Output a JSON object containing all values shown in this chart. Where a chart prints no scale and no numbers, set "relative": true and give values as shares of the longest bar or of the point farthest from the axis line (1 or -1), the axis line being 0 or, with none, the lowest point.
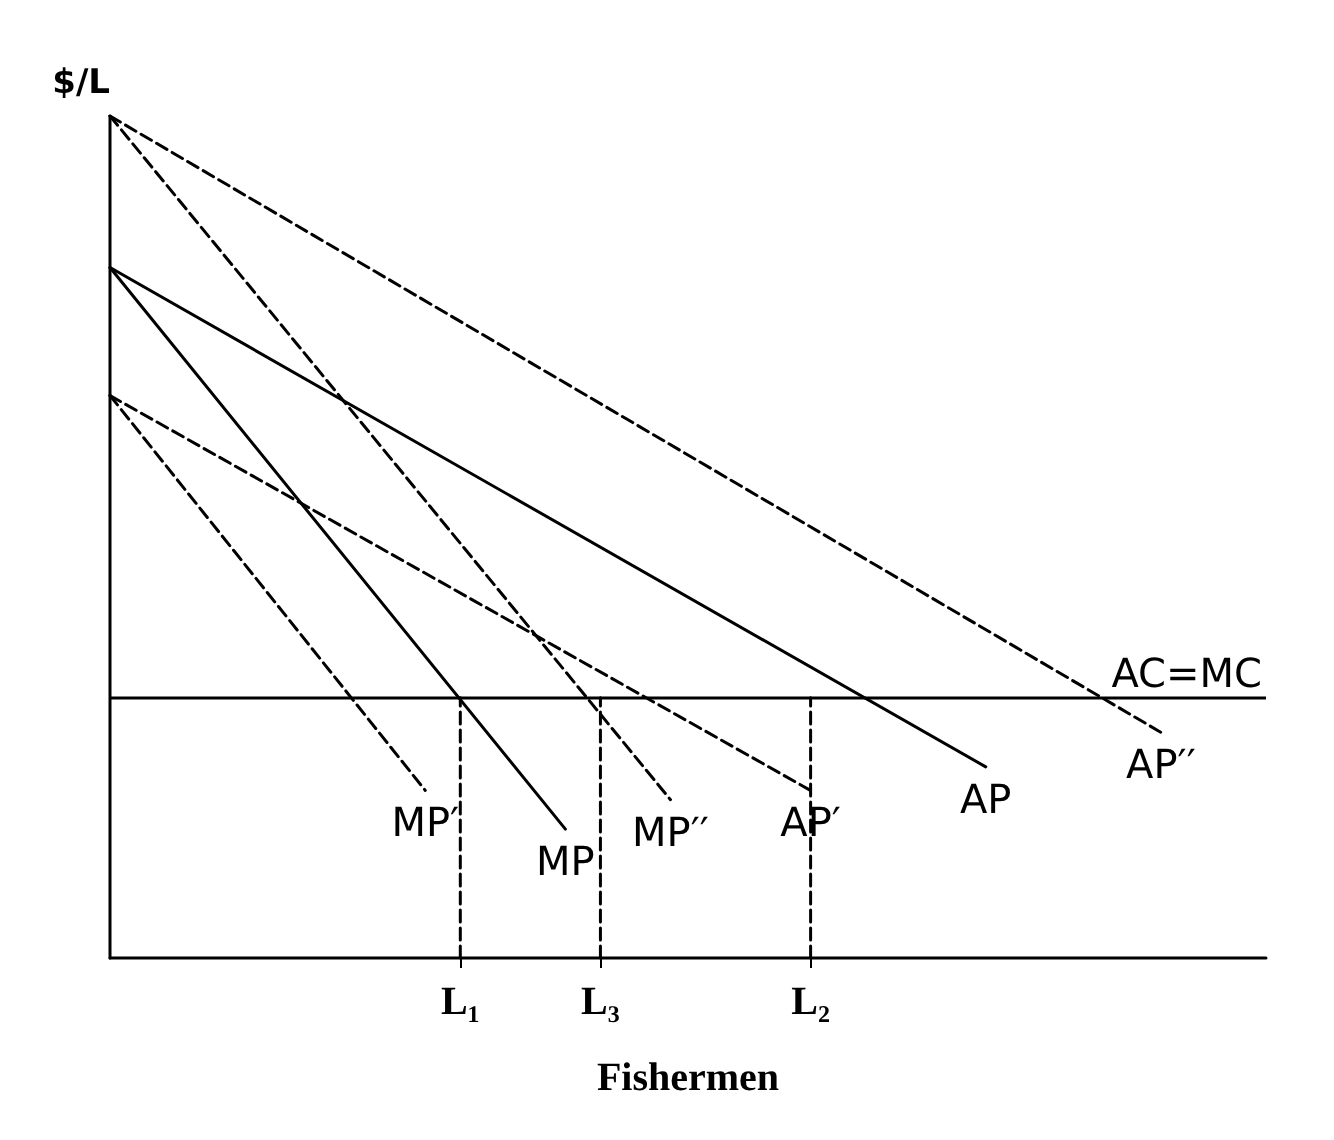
{
  "chart_data": {
    "type": "line",
    "relative": true,
    "ylabel": "$/L",
    "xlabel": "Fishermen",
    "grid": false,
    "legend": false,
    "marker": "none",
    "categories": [
      null,
      null,
      null,
      null,
      null,
      null,
      null,
      null,
      null,
      null,
      "L₁",
      null,
      null,
      null,
      "L₃",
      null,
      null,
      null,
      null,
      null,
      "L₂",
      null,
      null,
      null,
      null,
      null,
      null,
      null,
      null,
      null,
      null,
      null,
      null,
      null
    ],
    "ref_lines": [
      {
        "axis": "y",
        "value": 0.309,
        "label": "AC=MC"
      }
    ],
    "series": [
      {
        "name": "MP′",
        "color": "#000000",
        "line_style": "dashed",
        "values": [
          0.668,
          null,
          null,
          null,
          null,
          null,
          null,
          null,
          null,
          0.199,
          null,
          null,
          null,
          null,
          null,
          null,
          null,
          null,
          null,
          null,
          null,
          null,
          null,
          null,
          null,
          null,
          null,
          null,
          null,
          null,
          null,
          null,
          null,
          null
        ]
      },
      {
        "name": "MP",
        "color": "#000000",
        "line_style": "solid",
        "values": [
          0.82,
          null,
          null,
          null,
          null,
          null,
          null,
          null,
          null,
          null,
          null,
          null,
          null,
          0.153,
          null,
          null,
          null,
          null,
          null,
          null,
          null,
          null,
          null,
          null,
          null,
          null,
          null,
          null,
          null,
          null,
          null,
          null,
          null,
          null
        ]
      },
      {
        "name": "MP′′",
        "color": "#000000",
        "line_style": "dashed",
        "values": [
          1,
          null,
          null,
          null,
          null,
          null,
          null,
          null,
          null,
          null,
          null,
          null,
          null,
          null,
          null,
          null,
          0.188,
          null,
          null,
          null,
          null,
          null,
          null,
          null,
          null,
          null,
          null,
          null,
          null,
          null,
          null,
          null,
          null,
          null
        ]
      },
      {
        "name": "AP′",
        "color": "#000000",
        "line_style": "dashed",
        "values": [
          0.668,
          null,
          null,
          null,
          null,
          null,
          null,
          null,
          null,
          null,
          null,
          null,
          null,
          null,
          null,
          null,
          null,
          null,
          null,
          null,
          0.199,
          null,
          null,
          null,
          null,
          null,
          null,
          null,
          null,
          null,
          null,
          null,
          null,
          null
        ]
      },
      {
        "name": "AP",
        "color": "#000000",
        "line_style": "solid",
        "values": [
          0.82,
          null,
          null,
          null,
          null,
          null,
          null,
          null,
          null,
          null,
          null,
          null,
          null,
          null,
          null,
          null,
          null,
          null,
          null,
          null,
          null,
          null,
          null,
          null,
          null,
          0.227,
          null,
          null,
          null,
          null,
          null,
          null,
          null,
          null
        ]
      },
      {
        "name": "AP′′",
        "color": "#000000",
        "line_style": "dashed",
        "values": [
          1,
          null,
          null,
          null,
          null,
          null,
          null,
          null,
          null,
          null,
          null,
          null,
          null,
          null,
          null,
          null,
          null,
          null,
          null,
          null,
          null,
          null,
          null,
          null,
          null,
          null,
          null,
          null,
          null,
          null,
          0.268,
          null,
          null,
          null
        ]
      },
      {
        "color": "#000000",
        "line_style": "dashed",
        "x": [
          "L₁",
          "L₁"
        ],
        "values": [
          0,
          0.309
        ]
      },
      {
        "color": "#000000",
        "line_style": "dashed",
        "x": [
          "L₃",
          "L₃"
        ],
        "values": [
          0,
          0.309
        ]
      },
      {
        "color": "#000000",
        "line_style": "dashed",
        "x": [
          "L₂",
          "L₂"
        ],
        "values": [
          0,
          0.309
        ]
      }
    ]
  }
}
